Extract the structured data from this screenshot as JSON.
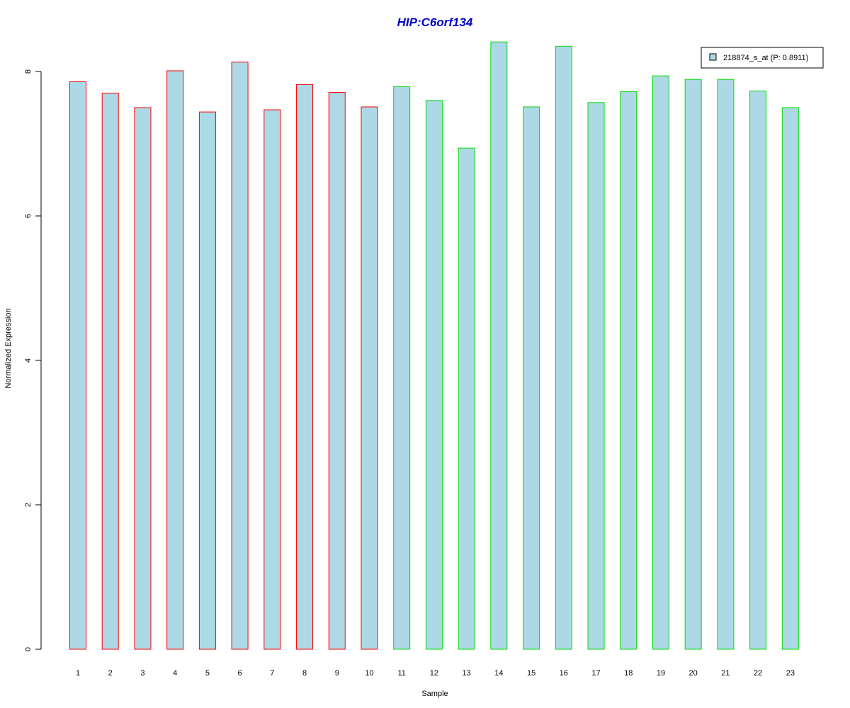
{
  "chart_data": {
    "type": "bar",
    "title": "HIP:C6orf134",
    "title_color": "#0000CC",
    "xlabel": "Sample",
    "ylabel": "Normalized Expression",
    "ylim": [
      0,
      8.4
    ],
    "yticks": [
      0,
      2,
      4,
      6,
      8
    ],
    "categories": [
      "1",
      "2",
      "3",
      "4",
      "5",
      "6",
      "7",
      "8",
      "9",
      "10",
      "11",
      "12",
      "13",
      "14",
      "15",
      "16",
      "17",
      "18",
      "19",
      "20",
      "21",
      "22",
      "23"
    ],
    "series": [
      {
        "name": "218874_s_at (P: 0.8911)",
        "values": [
          7.86,
          7.7,
          7.5,
          8.01,
          7.44,
          8.13,
          7.47,
          7.82,
          7.71,
          7.51,
          7.79,
          7.6,
          6.94,
          8.41,
          7.51,
          8.35,
          7.57,
          7.72,
          7.94,
          7.89,
          7.89,
          7.73,
          7.5
        ]
      }
    ],
    "groups": [
      1,
      1,
      1,
      1,
      1,
      1,
      1,
      1,
      1,
      1,
      2,
      2,
      2,
      2,
      2,
      2,
      2,
      2,
      2,
      2,
      2,
      2,
      2
    ],
    "fill_color": "#ADD8E6",
    "group_colors": {
      "1": "#FF0000",
      "2": "#00DD00"
    },
    "legend_position": "top-right",
    "grid": false
  }
}
